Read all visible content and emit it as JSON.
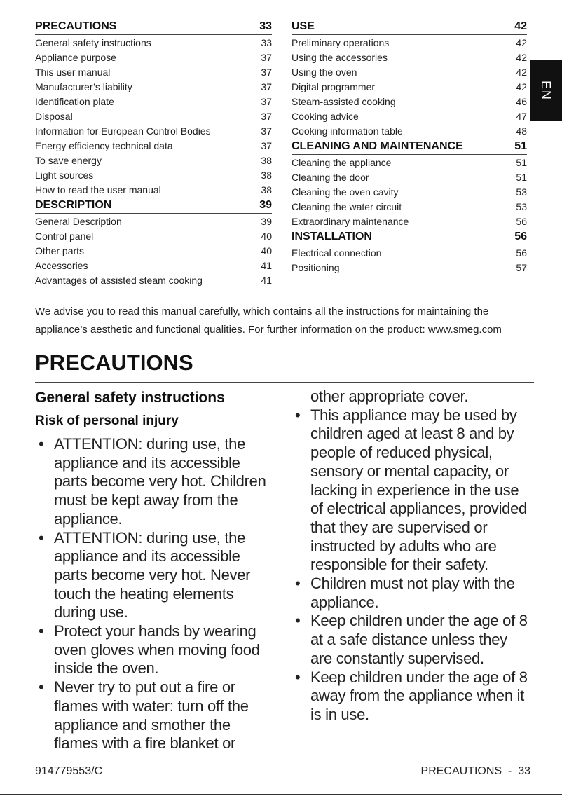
{
  "toc": {
    "left": [
      {
        "title": "PRECAUTIONS",
        "page": "33",
        "items": [
          {
            "label": "General safety instructions",
            "page": "33"
          },
          {
            "label": "Appliance purpose",
            "page": "37"
          },
          {
            "label": "This user manual",
            "page": "37"
          },
          {
            "label": "Manufacturer’s liability",
            "page": "37"
          },
          {
            "label": "Identification plate",
            "page": "37"
          },
          {
            "label": "Disposal",
            "page": "37"
          },
          {
            "label": "Information for European Control Bodies",
            "page": "37"
          },
          {
            "label": "Energy efficiency technical data",
            "page": "37"
          },
          {
            "label": "To save energy",
            "page": "38"
          },
          {
            "label": "Light sources",
            "page": "38"
          },
          {
            "label": "How to read the user manual",
            "page": "38"
          }
        ]
      },
      {
        "title": "DESCRIPTION",
        "page": "39",
        "items": [
          {
            "label": "General Description",
            "page": "39"
          },
          {
            "label": "Control panel",
            "page": "40"
          },
          {
            "label": "Other parts",
            "page": "40"
          },
          {
            "label": "Accessories",
            "page": "41"
          },
          {
            "label": "Advantages of assisted steam cooking",
            "page": "41"
          }
        ]
      }
    ],
    "right": [
      {
        "title": "USE",
        "page": "42",
        "items": [
          {
            "label": "Preliminary operations",
            "page": "42"
          },
          {
            "label": "Using the accessories",
            "page": "42"
          },
          {
            "label": "Using the oven",
            "page": "42"
          },
          {
            "label": "Digital programmer",
            "page": "42"
          },
          {
            "label": "Steam-assisted cooking",
            "page": "46"
          },
          {
            "label": "Cooking advice",
            "page": "47"
          },
          {
            "label": "Cooking information table",
            "page": "48"
          }
        ]
      },
      {
        "title": "CLEANING AND MAINTENANCE",
        "page": "51",
        "items": [
          {
            "label": "Cleaning the appliance",
            "page": "51"
          },
          {
            "label": "Cleaning the door",
            "page": "51"
          },
          {
            "label": "Cleaning the oven cavity",
            "page": "53"
          },
          {
            "label": "Cleaning the water circuit",
            "page": "53"
          },
          {
            "label": "Extraordinary maintenance",
            "page": "56"
          }
        ]
      },
      {
        "title": "INSTALLATION",
        "page": "56",
        "items": [
          {
            "label": "Electrical connection",
            "page": "56"
          },
          {
            "label": "Positioning",
            "page": "57"
          }
        ]
      }
    ]
  },
  "language_tab": "EN",
  "intro": "We advise you to read this manual carefully, which contains all the instructions for maintaining the appliance’s aesthetic and functional qualities. For further information on the product: www.smeg.com",
  "page_title": "PRECAUTIONS",
  "section_title": "General safety instructions",
  "subsection_title": "Risk of personal injury",
  "bullet_char": "•",
  "left_bullets": [
    "ATTENTION: during use, the appliance and its accessible parts become very hot. Children must be kept away from the appliance.",
    "ATTENTION: during use, the appliance and its accessible parts become very hot. Never touch the heating elements during use.",
    "Protect your hands by wearing oven gloves when moving food inside the oven.",
    "Never try to put out a fire or flames with water: turn off the appliance and smother the flames with a fire blanket or"
  ],
  "right_continuation": "other appropriate cover.",
  "right_bullets": [
    "This appliance may be used by children aged at least 8 and by people of reduced physical, sensory or mental capacity, or lacking in experience in the use of electrical appliances, provided that they are supervised or instructed by adults who are responsible for their safety.",
    "Children must not play with the appliance.",
    "Keep children under the age of 8 at a safe distance unless they are constantly supervised.",
    "Keep children under the age of 8 away from the appliance when it is in use."
  ],
  "footer": {
    "code": "914779553/C",
    "page_label": "PRECAUTIONS  -  33"
  }
}
